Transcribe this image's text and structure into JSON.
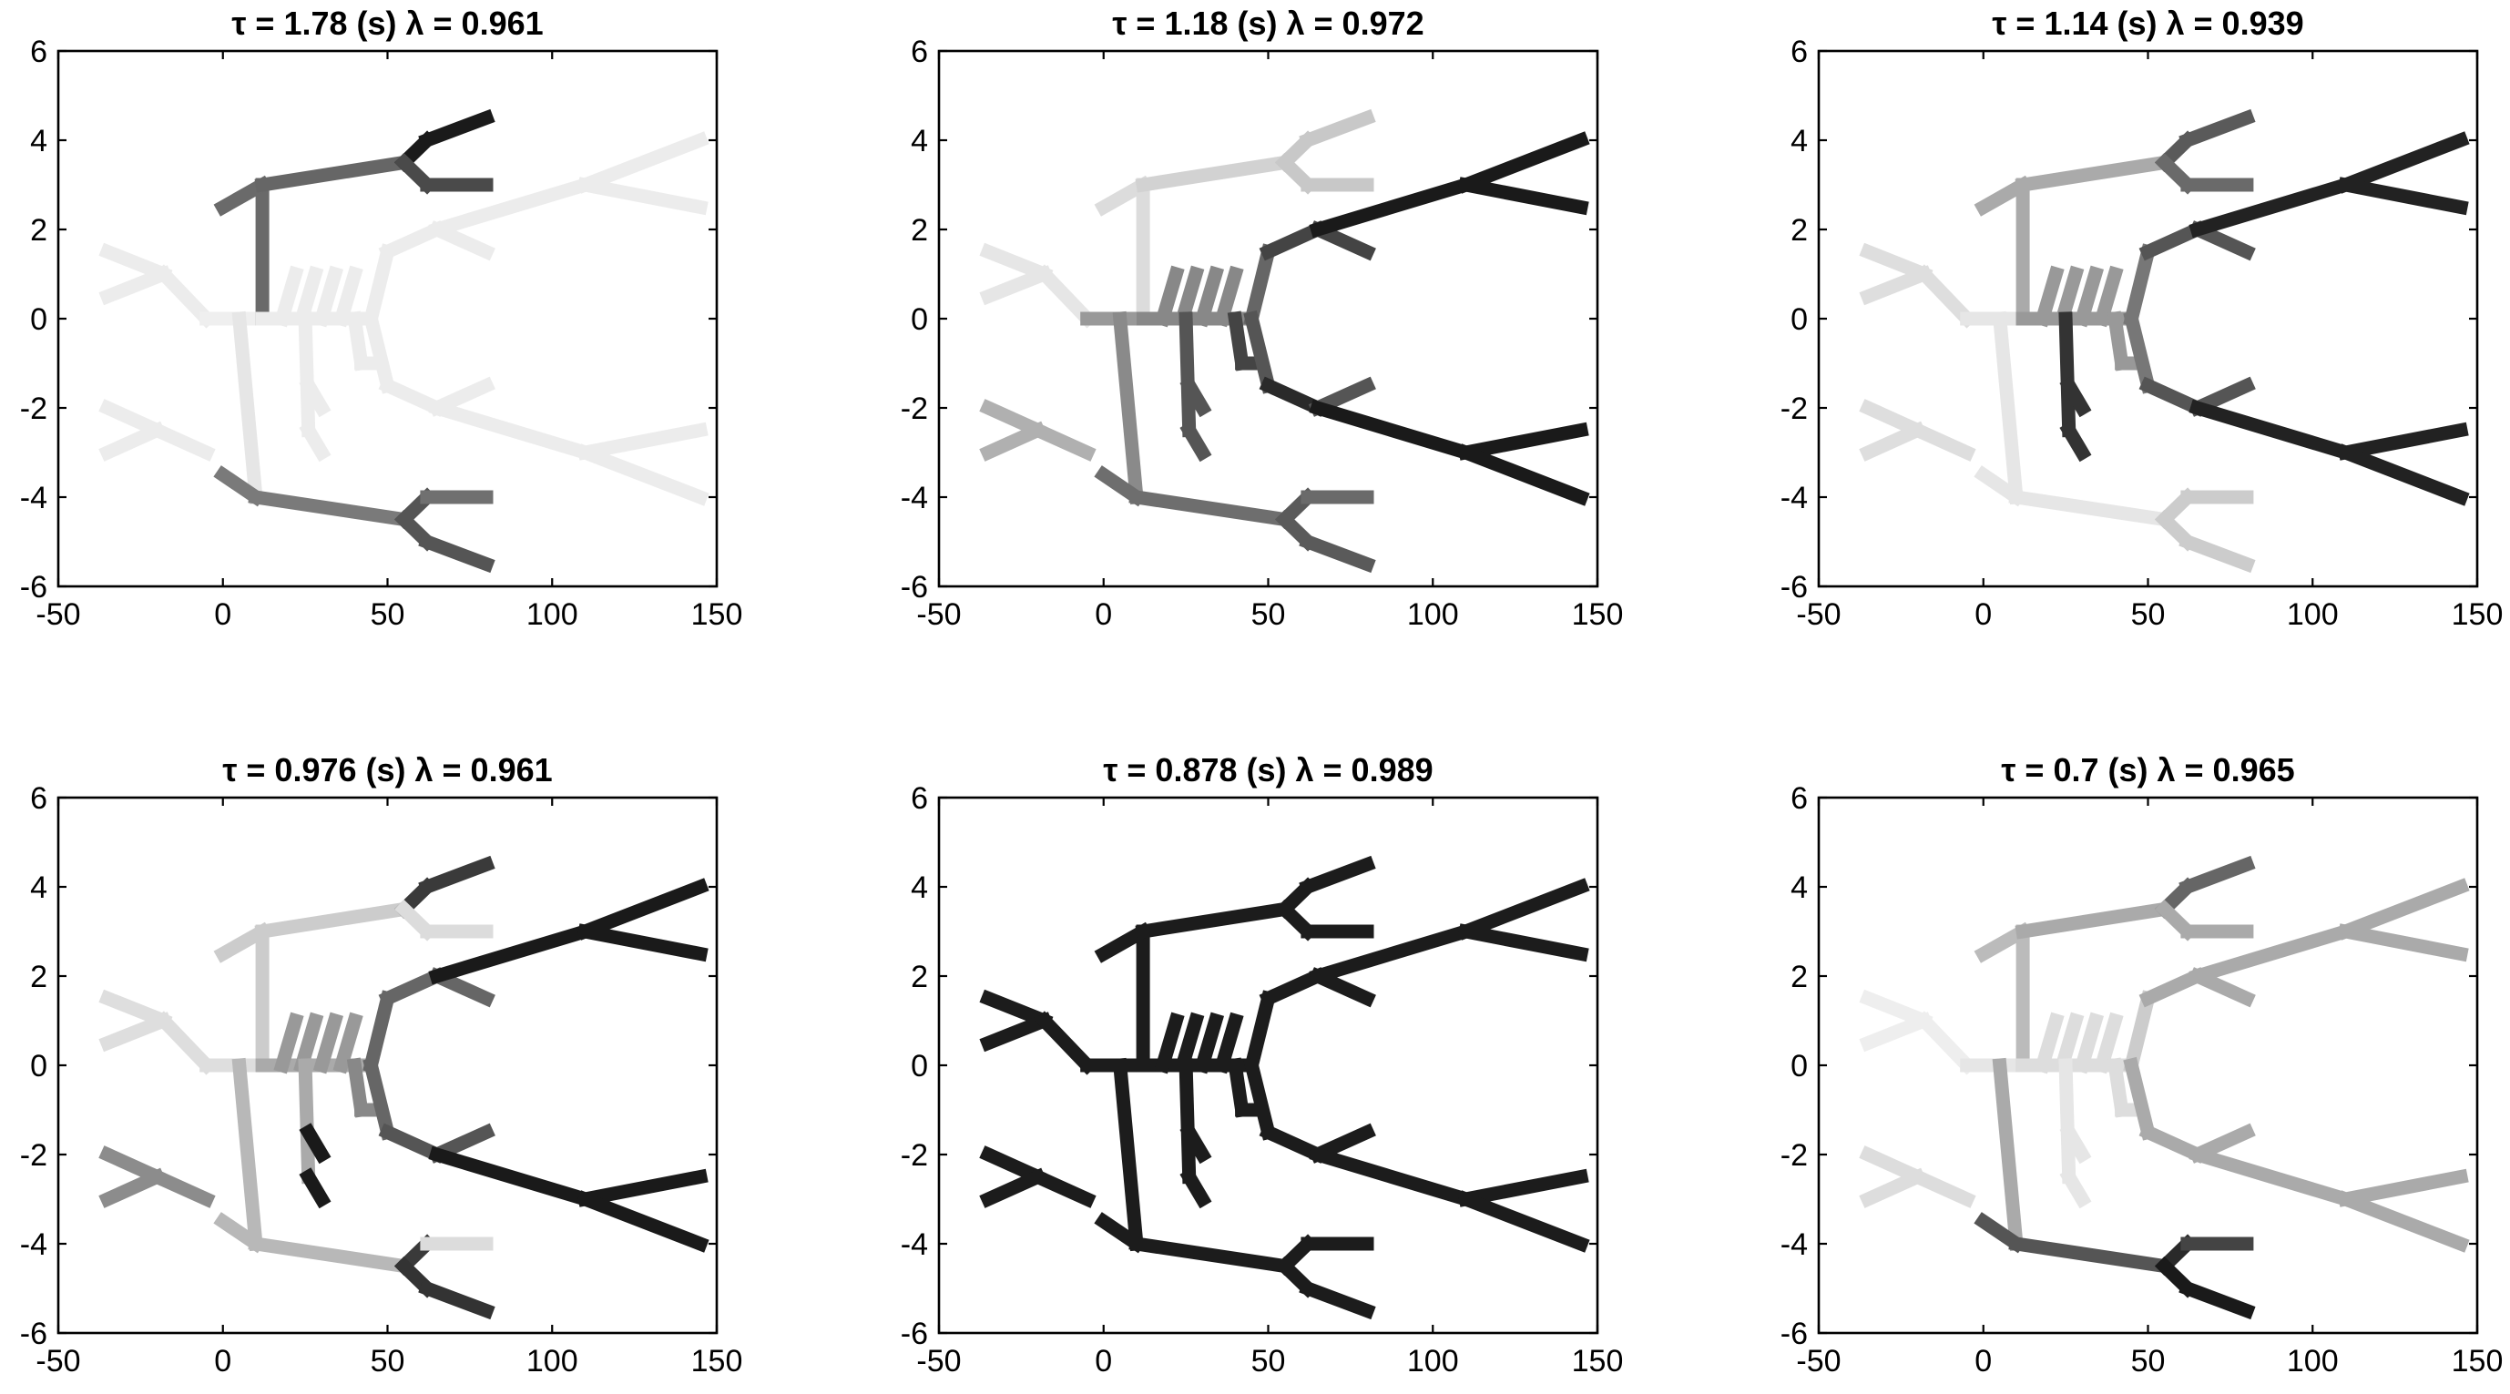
{
  "chart_data": {
    "type": "line",
    "layout": "2x3 grid of panels",
    "xlim": [
      -50,
      150
    ],
    "ylim": [
      -6,
      6
    ],
    "xticks": [
      "-50",
      "0",
      "50",
      "100",
      "150"
    ],
    "yticks": [
      "6",
      "4",
      "2",
      "0",
      "-2",
      "-4",
      "-6"
    ],
    "grid": false,
    "legend": "none",
    "colormap": "grayscale: shade encodes value (light = low, dark = high)",
    "tree_segments": [
      [
        [
          -35,
          1.5
        ],
        [
          -18,
          1
        ]
      ],
      [
        [
          -35,
          0.5
        ],
        [
          -18,
          1
        ]
      ],
      [
        [
          -18,
          1
        ],
        [
          -5,
          0
        ]
      ],
      [
        [
          -35,
          -2
        ],
        [
          -20,
          -2.5
        ]
      ],
      [
        [
          -35,
          -3
        ],
        [
          -20,
          -2.5
        ]
      ],
      [
        [
          -20,
          -2.5
        ],
        [
          -5,
          -3
        ]
      ],
      [
        [
          -5,
          0
        ],
        [
          12,
          0
        ]
      ],
      [
        [
          12,
          0
        ],
        [
          12,
          3
        ]
      ],
      [
        [
          0,
          2.5
        ],
        [
          12,
          3
        ]
      ],
      [
        [
          12,
          3
        ],
        [
          55,
          3.5
        ]
      ],
      [
        [
          55,
          3.5
        ],
        [
          62,
          4
        ]
      ],
      [
        [
          62,
          4
        ],
        [
          80,
          4.5
        ]
      ],
      [
        [
          55,
          3.5
        ],
        [
          62,
          3
        ]
      ],
      [
        [
          62,
          3
        ],
        [
          80,
          3
        ]
      ],
      [
        [
          5,
          0
        ],
        [
          10,
          -4
        ]
      ],
      [
        [
          0,
          -3.5
        ],
        [
          10,
          -4
        ]
      ],
      [
        [
          10,
          -4
        ],
        [
          55,
          -4.5
        ]
      ],
      [
        [
          55,
          -4.5
        ],
        [
          62,
          -4
        ]
      ],
      [
        [
          62,
          -4
        ],
        [
          80,
          -4
        ]
      ],
      [
        [
          55,
          -4.5
        ],
        [
          62,
          -5
        ]
      ],
      [
        [
          62,
          -5
        ],
        [
          80,
          -5.5
        ]
      ],
      [
        [
          12,
          0
        ],
        [
          45,
          0
        ]
      ],
      [
        [
          18,
          0
        ],
        [
          22,
          1
        ]
      ],
      [
        [
          24,
          0
        ],
        [
          28,
          1
        ]
      ],
      [
        [
          30,
          0
        ],
        [
          34,
          1
        ]
      ],
      [
        [
          36,
          0
        ],
        [
          40,
          1
        ]
      ],
      [
        [
          25,
          0
        ],
        [
          26,
          -2.5
        ]
      ],
      [
        [
          26,
          -1.5
        ],
        [
          30,
          -2
        ]
      ],
      [
        [
          26,
          -2.5
        ],
        [
          30,
          -3
        ]
      ],
      [
        [
          40,
          0
        ],
        [
          42,
          -1
        ]
      ],
      [
        [
          42,
          -1
        ],
        [
          45,
          -1
        ]
      ],
      [
        [
          45,
          0
        ],
        [
          50,
          1.5
        ]
      ],
      [
        [
          45,
          0
        ],
        [
          50,
          -1.5
        ]
      ],
      [
        [
          50,
          1.5
        ],
        [
          65,
          2
        ]
      ],
      [
        [
          65,
          2
        ],
        [
          80,
          1.5
        ]
      ],
      [
        [
          65,
          2
        ],
        [
          110,
          3
        ]
      ],
      [
        [
          110,
          3
        ],
        [
          145,
          4
        ]
      ],
      [
        [
          110,
          3
        ],
        [
          145,
          2.5
        ]
      ],
      [
        [
          50,
          -1.5
        ],
        [
          65,
          -2
        ]
      ],
      [
        [
          65,
          -2
        ],
        [
          80,
          -1.5
        ]
      ],
      [
        [
          65,
          -2
        ],
        [
          110,
          -3
        ]
      ],
      [
        [
          110,
          -3
        ],
        [
          145,
          -2.5
        ]
      ],
      [
        [
          110,
          -3
        ],
        [
          145,
          -4
        ]
      ]
    ],
    "panels": [
      {
        "title": "τ = 1.78 (s)   λ = 0.961",
        "tau": 1.78,
        "lambda": 0.961,
        "shades": [
          "#ececec",
          "#ececec",
          "#ececec",
          "#ececec",
          "#ececec",
          "#ececec",
          "#efefef",
          "#6a6a6a",
          "#6a6a6a",
          "#666666",
          "#1a1a1a",
          "#1a1a1a",
          "#4a4a4a",
          "#4a4a4a",
          "#e6e6e6",
          "#7a7a7a",
          "#7a7a7a",
          "#555555",
          "#707070",
          "#555555",
          "#555555",
          "#ececec",
          "#ececec",
          "#ececec",
          "#ececec",
          "#ececec",
          "#ececec",
          "#ececec",
          "#ececec",
          "#ececec",
          "#ececec",
          "#ececec",
          "#ececec",
          "#ececec",
          "#ececec",
          "#ececec",
          "#ececec",
          "#ececec",
          "#ececec",
          "#ececec",
          "#ececec",
          "#ececec",
          "#ececec"
        ]
      },
      {
        "title": "τ = 1.18 (s)   λ = 0.972",
        "tau": 1.18,
        "lambda": 0.972,
        "shades": [
          "#e6e6e6",
          "#e6e6e6",
          "#e6e6e6",
          "#b0b0b0",
          "#b0b0b0",
          "#b0b0b0",
          "#999999",
          "#dcdcdc",
          "#dcdcdc",
          "#d2d2d2",
          "#c8c8c8",
          "#c8c8c8",
          "#c8c8c8",
          "#c8c8c8",
          "#8a8a8a",
          "#6e6e6e",
          "#6e6e6e",
          "#5a5a5a",
          "#6a6a6a",
          "#5a5a5a",
          "#5a5a5a",
          "#888888",
          "#888888",
          "#888888",
          "#888888",
          "#888888",
          "#555555",
          "#555555",
          "#555555",
          "#444444",
          "#444444",
          "#666666",
          "#555555",
          "#444444",
          "#444444",
          "#1a1a1a",
          "#1a1a1a",
          "#1a1a1a",
          "#2a2a2a",
          "#555555",
          "#1a1a1a",
          "#1a1a1a",
          "#1a1a1a"
        ]
      },
      {
        "title": "τ = 1.14 (s)   λ = 0.939",
        "tau": 1.14,
        "lambda": 0.939,
        "shades": [
          "#dedede",
          "#dedede",
          "#dedede",
          "#dedede",
          "#dedede",
          "#dedede",
          "#e6e6e6",
          "#aaaaaa",
          "#aaaaaa",
          "#aaaaaa",
          "#5a5a5a",
          "#5a5a5a",
          "#6a6a6a",
          "#6a6a6a",
          "#e6e6e6",
          "#e6e6e6",
          "#e6e6e6",
          "#cccccc",
          "#cccccc",
          "#cccccc",
          "#cccccc",
          "#999999",
          "#999999",
          "#999999",
          "#999999",
          "#999999",
          "#333333",
          "#333333",
          "#333333",
          "#999999",
          "#999999",
          "#777777",
          "#777777",
          "#555555",
          "#555555",
          "#222222",
          "#222222",
          "#222222",
          "#555555",
          "#555555",
          "#222222",
          "#222222",
          "#222222"
        ]
      },
      {
        "title": "τ = 0.976 (s)   λ = 0.961",
        "tau": 0.976,
        "lambda": 0.961,
        "shades": [
          "#dedede",
          "#dedede",
          "#dedede",
          "#8c8c8c",
          "#8c8c8c",
          "#8c8c8c",
          "#dedede",
          "#cccccc",
          "#cccccc",
          "#cccccc",
          "#3a3a3a",
          "#3a3a3a",
          "#dcdcdc",
          "#dcdcdc",
          "#b8b8b8",
          "#b8b8b8",
          "#b8b8b8",
          "#3a3a3a",
          "#dcdcdc",
          "#333333",
          "#333333",
          "#aaaaaa",
          "#999999",
          "#999999",
          "#999999",
          "#999999",
          "#aaaaaa",
          "#1a1a1a",
          "#1a1a1a",
          "#888888",
          "#888888",
          "#666666",
          "#666666",
          "#666666",
          "#666666",
          "#1a1a1a",
          "#1a1a1a",
          "#1a1a1a",
          "#555555",
          "#555555",
          "#1a1a1a",
          "#1a1a1a",
          "#1a1a1a"
        ]
      },
      {
        "title": "τ = 0.878 (s)   λ = 0.989",
        "tau": 0.878,
        "lambda": 0.989,
        "shades": [
          "#1c1c1c",
          "#1c1c1c",
          "#1c1c1c",
          "#1c1c1c",
          "#1c1c1c",
          "#1c1c1c",
          "#1c1c1c",
          "#1c1c1c",
          "#1c1c1c",
          "#1c1c1c",
          "#1c1c1c",
          "#1c1c1c",
          "#1c1c1c",
          "#1c1c1c",
          "#1c1c1c",
          "#1c1c1c",
          "#1c1c1c",
          "#1c1c1c",
          "#1c1c1c",
          "#1c1c1c",
          "#1c1c1c",
          "#1c1c1c",
          "#1c1c1c",
          "#1c1c1c",
          "#1c1c1c",
          "#1c1c1c",
          "#1c1c1c",
          "#1c1c1c",
          "#1c1c1c",
          "#1c1c1c",
          "#1c1c1c",
          "#1c1c1c",
          "#1c1c1c",
          "#1c1c1c",
          "#1c1c1c",
          "#1c1c1c",
          "#1c1c1c",
          "#1c1c1c",
          "#1c1c1c",
          "#1c1c1c",
          "#1c1c1c",
          "#1c1c1c",
          "#1c1c1c"
        ]
      },
      {
        "title": "τ = 0.7 (s)   λ = 0.965",
        "tau": 0.7,
        "lambda": 0.965,
        "shades": [
          "#eeeeee",
          "#eeeeee",
          "#eeeeee",
          "#dddddd",
          "#dddddd",
          "#dddddd",
          "#e6e6e6",
          "#bbbbbb",
          "#bbbbbb",
          "#aaaaaa",
          "#666666",
          "#666666",
          "#aaaaaa",
          "#aaaaaa",
          "#aaaaaa",
          "#555555",
          "#555555",
          "#2a2a2a",
          "#444444",
          "#1a1a1a",
          "#1a1a1a",
          "#dddddd",
          "#dddddd",
          "#dddddd",
          "#dddddd",
          "#dddddd",
          "#e6e6e6",
          "#e6e6e6",
          "#e6e6e6",
          "#dddddd",
          "#dddddd",
          "#cccccc",
          "#aaaaaa",
          "#aaaaaa",
          "#aaaaaa",
          "#aaaaaa",
          "#aaaaaa",
          "#aaaaaa",
          "#aaaaaa",
          "#aaaaaa",
          "#aaaaaa",
          "#aaaaaa",
          "#aaaaaa"
        ]
      }
    ]
  }
}
